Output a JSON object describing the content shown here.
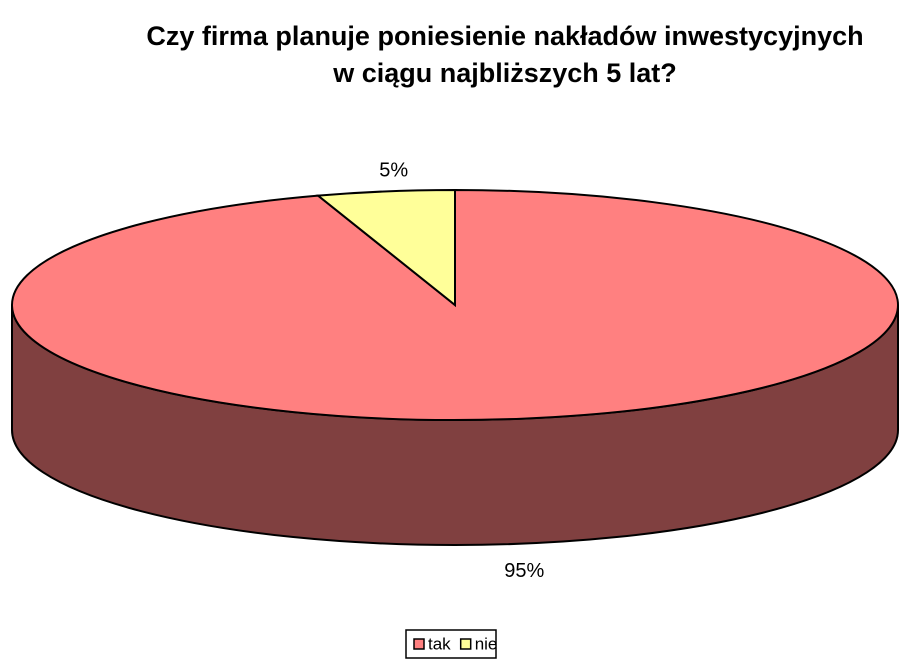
{
  "chart_data": {
    "type": "pie3d",
    "title": [
      "Czy firma planuje poniesienie nakładów inwestycyjnych",
      "w ciągu najbliższych 5 lat?"
    ],
    "categories": [
      "tak",
      "nie"
    ],
    "values": [
      95,
      5
    ],
    "value_labels": [
      "95%",
      "5%"
    ],
    "colors": [
      "#ff8080",
      "#ffff99"
    ],
    "side_colors": [
      "#804040",
      "#808050"
    ],
    "legend": "bottom"
  }
}
